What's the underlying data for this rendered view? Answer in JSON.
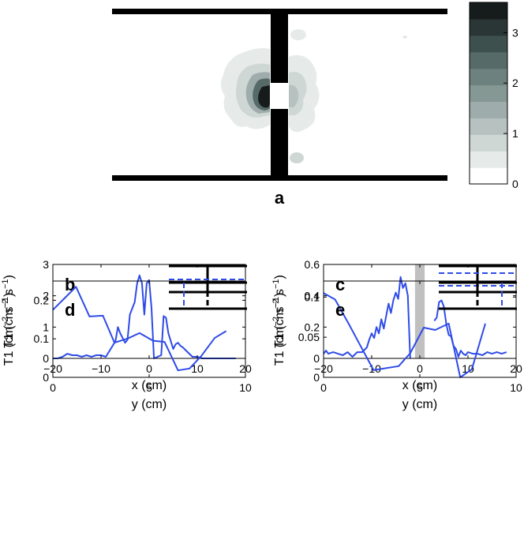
{
  "colors": {
    "series": "#2e4be8",
    "wall": "#000000",
    "gap_band": "#c0c0c0",
    "colormap": [
      "#ffffff",
      "#e6ebea",
      "#cfd7d5",
      "#b7c2c0",
      "#9eadab",
      "#869894",
      "#6d827e",
      "#566a67",
      "#3e504e",
      "#2a3635",
      "#161c1c"
    ]
  },
  "panel_a": {
    "label": "a",
    "colorbar_ticks": [
      "0",
      "1",
      "2",
      "3"
    ]
  },
  "chart_data": [
    {
      "id": "b",
      "type": "line",
      "label": "b",
      "xlabel": "x (cm)",
      "ylabel": "T1 (cm−2 s−1)",
      "xlim": [
        -20,
        20
      ],
      "ylim": [
        0,
        3
      ],
      "xticks": [
        "−20",
        "−10",
        "0",
        "10",
        "20"
      ],
      "yticks": [
        "0",
        "1",
        "2",
        "3"
      ],
      "x": [
        -20,
        -19,
        -18,
        -17,
        -16,
        -15,
        -14,
        -13,
        -12,
        -11,
        -10,
        -9,
        -8,
        -7,
        -6.5,
        -6,
        -5,
        -4.5,
        -4,
        -3,
        -2.5,
        -2,
        -1.5,
        -1,
        -0.5,
        0,
        0.5,
        1,
        2.5,
        3,
        3.5,
        4,
        5,
        5.5,
        6,
        6.5,
        7,
        8,
        9,
        10,
        11,
        12,
        13,
        14,
        15,
        16,
        17,
        18
      ],
      "y": [
        0,
        0,
        0.05,
        0.15,
        0.1,
        0.1,
        0.05,
        0.1,
        0.05,
        0.1,
        0.1,
        0.05,
        0.3,
        0.55,
        1.0,
        0.8,
        0.5,
        0.6,
        1.4,
        1.8,
        2.4,
        2.65,
        2.4,
        1.4,
        2.4,
        2.5,
        1.6,
        0.0,
        0.1,
        1.35,
        1.3,
        0.8,
        0.3,
        0.45,
        0.5,
        0.4,
        0.35,
        0.2,
        0.05,
        0.05,
        0,
        0,
        0,
        0,
        0,
        0,
        0,
        0
      ]
    },
    {
      "id": "c",
      "type": "line",
      "label": "c",
      "xlabel": "x (cm)",
      "ylabel": "T1 (cm−2 s−1)",
      "xlim": [
        -20,
        20
      ],
      "ylim": [
        0,
        0.6
      ],
      "xticks": [
        "−20",
        "−10",
        "0",
        "10",
        "20"
      ],
      "yticks": [
        "0",
        "0.2",
        "0.4",
        "0.6"
      ],
      "gap_band": [
        -1,
        1
      ],
      "segments": [
        {
          "x": [
            -20,
            -19.5,
            -19,
            -18,
            -17,
            -16,
            -15,
            -14,
            -13,
            -12,
            -11,
            -10.5,
            -10,
            -9.5,
            -9,
            -8.5,
            -8,
            -7.5,
            -7,
            -6.5,
            -6,
            -5.5,
            -5,
            -4.5,
            -4,
            -3.5,
            -3,
            -2.5,
            -2
          ],
          "y": [
            0.03,
            0.05,
            0.03,
            0.04,
            0.03,
            0.02,
            0.04,
            0.01,
            0.04,
            0.04,
            0.07,
            0.12,
            0.16,
            0.13,
            0.2,
            0.16,
            0.25,
            0.19,
            0.27,
            0.35,
            0.29,
            0.37,
            0.42,
            0.38,
            0.52,
            0.45,
            0.48,
            0.4,
            0.0
          ]
        },
        {
          "x": [
            3,
            3.5,
            4,
            4.5,
            5,
            5.5,
            6,
            6.5,
            7,
            7.5,
            8,
            8.5,
            9,
            9.5,
            10,
            11,
            12,
            13,
            14,
            15,
            16,
            17,
            18
          ],
          "y": [
            0.24,
            0.26,
            0.36,
            0.37,
            0.33,
            0.22,
            0.15,
            0.14,
            0.08,
            0.06,
            0.01,
            0.05,
            0.03,
            0.02,
            0.04,
            0.03,
            0.03,
            0.02,
            0.04,
            0.03,
            0.04,
            0.03,
            0.04
          ]
        }
      ]
    },
    {
      "id": "d",
      "type": "line",
      "label": "d",
      "xlabel": "y (cm)",
      "ylabel": "T1 (cm−2 s−1)",
      "xlim": [
        0,
        10
      ],
      "ylim": [
        0,
        0.25
      ],
      "xticks": [
        "0",
        "5",
        "10"
      ],
      "yticks": [
        "0",
        "0.1",
        "0.2"
      ],
      "x": [
        0,
        0.6,
        1.2,
        1.9,
        2.6,
        3.2,
        3.9,
        4.5,
        5.2,
        5.8,
        6.5,
        7.1,
        7.7,
        8.4,
        9.0
      ],
      "y": [
        0.175,
        0.205,
        0.235,
        0.158,
        0.16,
        0.09,
        0.101,
        0.115,
        0.095,
        0.092,
        0.018,
        0.023,
        0.055,
        0.102,
        0.12
      ]
    },
    {
      "id": "e",
      "type": "line",
      "label": "e",
      "xlabel": "y (cm)",
      "ylabel": "T1 (cm−2 s−1)",
      "xlim": [
        0,
        10
      ],
      "ylim": [
        0,
        0.12
      ],
      "xticks": [
        "0",
        "5",
        "10"
      ],
      "yticks": [
        "0",
        "0.05",
        "0.1"
      ],
      "x": [
        0,
        0.6,
        1.3,
        1.9,
        2.6,
        3.9,
        4.5,
        5.2,
        5.8,
        6.5,
        7.1,
        7.7,
        8.4
      ],
      "y": [
        0.105,
        0.097,
        0.067,
        0.04,
        0.009,
        0.014,
        0.03,
        0.062,
        0.059,
        0.067,
        0.0,
        0.01,
        0.067
      ]
    }
  ]
}
